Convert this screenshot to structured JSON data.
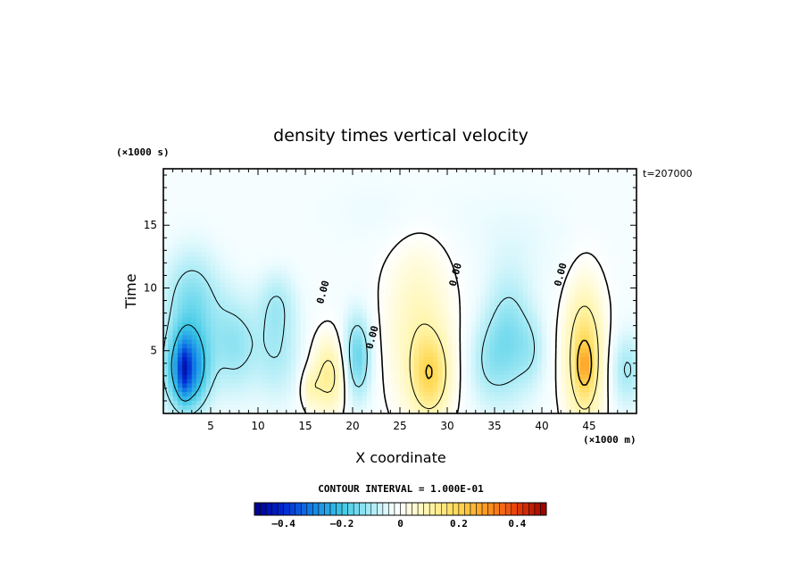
{
  "chart_data": {
    "type": "heatmap",
    "title": "density times vertical velocity",
    "xlabel": "X coordinate",
    "ylabel": "Time",
    "x_unit_label": "(×1000 m)",
    "y_unit_label": "(×1000 s)",
    "time_stamp": "t=207000",
    "xlim": [
      0,
      50
    ],
    "ylim": [
      0,
      19.5
    ],
    "x_ticks": [
      5,
      10,
      15,
      20,
      25,
      30,
      35,
      40,
      45
    ],
    "x_tick_labels": [
      "5",
      "10",
      "15",
      "20",
      "25",
      "30",
      "35",
      "40",
      "45"
    ],
    "y_ticks": [
      5,
      10,
      15
    ],
    "y_tick_labels": [
      "5",
      "10",
      "15"
    ],
    "contour_interval_text": "CONTOUR INTERVAL = 1.000E-01",
    "contour_label": "0.00",
    "colorbar": {
      "min": -0.5,
      "max": 0.5,
      "tick_values": [
        -0.4,
        -0.2,
        0,
        0.2,
        0.4
      ],
      "tick_labels": [
        "–0.4",
        "–0.2",
        "0",
        "0.2",
        "0.4"
      ]
    },
    "field_blobs": [
      {
        "x": 2.5,
        "y": 3.5,
        "sx": 2.2,
        "sy": 3.2,
        "v": -0.3
      },
      {
        "x": 2.2,
        "y": 3.5,
        "sx": 0.6,
        "sy": 2.0,
        "v": -0.12
      },
      {
        "x": 3.0,
        "y": 9.0,
        "sx": 3.0,
        "sy": 4.0,
        "v": -0.12
      },
      {
        "x": 7.5,
        "y": 5.5,
        "sx": 2.5,
        "sy": 4.0,
        "v": -0.1
      },
      {
        "x": 12.0,
        "y": 5.0,
        "sx": 2.5,
        "sy": 4.0,
        "v": -0.08
      },
      {
        "x": 12.0,
        "y": 9.0,
        "sx": 2.0,
        "sy": 2.5,
        "v": -0.06
      },
      {
        "x": 17.5,
        "y": 3.0,
        "sx": 1.8,
        "sy": 3.0,
        "v": 0.14
      },
      {
        "x": 15.5,
        "y": 2.0,
        "sx": 1.0,
        "sy": 1.5,
        "v": 0.07
      },
      {
        "x": 20.5,
        "y": 4.5,
        "sx": 1.5,
        "sy": 3.5,
        "v": -0.15
      },
      {
        "x": 27.0,
        "y": 7.0,
        "sx": 3.5,
        "sy": 7.0,
        "v": 0.09
      },
      {
        "x": 28.2,
        "y": 3.0,
        "sx": 2.0,
        "sy": 3.2,
        "v": 0.16
      },
      {
        "x": 34.0,
        "y": 4.0,
        "sx": 2.0,
        "sy": 3.5,
        "v": -0.06
      },
      {
        "x": 36.5,
        "y": 6.0,
        "sx": 2.5,
        "sy": 5.0,
        "v": -0.12
      },
      {
        "x": 39.0,
        "y": 5.0,
        "sx": 1.5,
        "sy": 3.0,
        "v": -0.05
      },
      {
        "x": 44.5,
        "y": 4.5,
        "sx": 2.0,
        "sy": 5.5,
        "v": 0.2
      },
      {
        "x": 44.5,
        "y": 3.8,
        "sx": 0.8,
        "sy": 1.8,
        "v": 0.1
      },
      {
        "x": 49.0,
        "y": 3.5,
        "sx": 1.8,
        "sy": 3.0,
        "v": -0.09
      },
      {
        "x": 38.0,
        "y": 14.0,
        "sx": 6.0,
        "sy": 4.0,
        "v": -0.02
      },
      {
        "x": 25.0,
        "y": 16.0,
        "sx": 8.0,
        "sy": 3.0,
        "v": -0.02
      }
    ]
  }
}
